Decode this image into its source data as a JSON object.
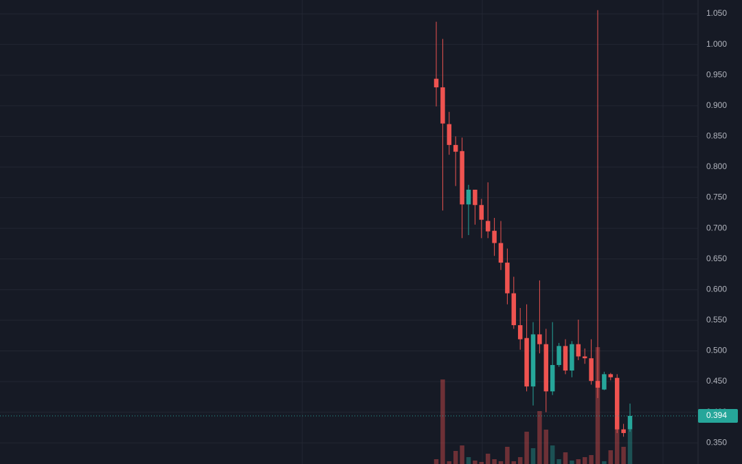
{
  "chart_data": {
    "type": "candlestick",
    "up_color": "#26a69a",
    "down_color": "#ef5350",
    "ylim": [
      0.3155,
      1.0725
    ],
    "yticks": [
      {
        "value": 0.35,
        "label": "0.350"
      },
      {
        "value": 0.4,
        "label": "0.400"
      },
      {
        "value": 0.45,
        "label": "0.450"
      },
      {
        "value": 0.5,
        "label": "0.500"
      },
      {
        "value": 0.55,
        "label": "0.550"
      },
      {
        "value": 0.6,
        "label": "0.600"
      },
      {
        "value": 0.65,
        "label": "0.650"
      },
      {
        "value": 0.7,
        "label": "0.700"
      },
      {
        "value": 0.75,
        "label": "0.750"
      },
      {
        "value": 0.8,
        "label": "0.800"
      },
      {
        "value": 0.85,
        "label": "0.850"
      },
      {
        "value": 0.9,
        "label": "0.900"
      },
      {
        "value": 0.95,
        "label": "0.950"
      },
      {
        "value": 1.0,
        "label": "1.000"
      },
      {
        "value": 1.05,
        "label": "1.050"
      }
    ],
    "grid": true,
    "last_price": {
      "value": 0.394,
      "label": "0.394"
    },
    "candles": [
      {
        "open": 0.944,
        "high": 1.037,
        "low": 0.899,
        "close": 0.93,
        "volume": 7
      },
      {
        "open": 0.93,
        "high": 1.009,
        "low": 0.729,
        "close": 0.871,
        "volume": 123
      },
      {
        "open": 0.87,
        "high": 0.89,
        "low": 0.82,
        "close": 0.836,
        "volume": 4
      },
      {
        "open": 0.836,
        "high": 0.85,
        "low": 0.769,
        "close": 0.825,
        "volume": 19
      },
      {
        "open": 0.826,
        "high": 0.848,
        "low": 0.684,
        "close": 0.739,
        "volume": 27
      },
      {
        "open": 0.739,
        "high": 0.771,
        "low": 0.689,
        "close": 0.763,
        "volume": 10
      },
      {
        "open": 0.763,
        "high": 0.763,
        "low": 0.706,
        "close": 0.738,
        "volume": 5
      },
      {
        "open": 0.738,
        "high": 0.748,
        "low": 0.684,
        "close": 0.714,
        "volume": 3
      },
      {
        "open": 0.712,
        "high": 0.775,
        "low": 0.684,
        "close": 0.695,
        "volume": 15
      },
      {
        "open": 0.696,
        "high": 0.717,
        "low": 0.655,
        "close": 0.676,
        "volume": 7
      },
      {
        "open": 0.676,
        "high": 0.712,
        "low": 0.632,
        "close": 0.644,
        "volume": 4
      },
      {
        "open": 0.644,
        "high": 0.667,
        "low": 0.576,
        "close": 0.594,
        "volume": 25
      },
      {
        "open": 0.594,
        "high": 0.621,
        "low": 0.536,
        "close": 0.542,
        "volume": 4
      },
      {
        "open": 0.542,
        "high": 0.57,
        "low": 0.502,
        "close": 0.519,
        "volume": 10
      },
      {
        "open": 0.521,
        "high": 0.576,
        "low": 0.434,
        "close": 0.442,
        "volume": 47
      },
      {
        "open": 0.442,
        "high": 0.547,
        "low": 0.411,
        "close": 0.527,
        "volume": 23
      },
      {
        "open": 0.527,
        "high": 0.615,
        "low": 0.496,
        "close": 0.511,
        "volume": 77
      },
      {
        "open": 0.511,
        "high": 0.536,
        "low": 0.4,
        "close": 0.434,
        "volume": 50
      },
      {
        "open": 0.434,
        "high": 0.547,
        "low": 0.428,
        "close": 0.477,
        "volume": 27
      },
      {
        "open": 0.477,
        "high": 0.513,
        "low": 0.474,
        "close": 0.508,
        "volume": 7
      },
      {
        "open": 0.508,
        "high": 0.519,
        "low": 0.462,
        "close": 0.468,
        "volume": 17
      },
      {
        "open": 0.468,
        "high": 0.516,
        "low": 0.457,
        "close": 0.511,
        "volume": 5
      },
      {
        "open": 0.511,
        "high": 0.551,
        "low": 0.485,
        "close": 0.491,
        "volume": 7
      },
      {
        "open": 0.491,
        "high": 0.504,
        "low": 0.479,
        "close": 0.488,
        "volume": 10
      },
      {
        "open": 0.488,
        "high": 0.519,
        "low": 0.445,
        "close": 0.451,
        "volume": 13
      },
      {
        "open": 0.451,
        "high": 1.056,
        "low": 0.423,
        "close": 0.44,
        "volume": 170
      },
      {
        "open": 0.437,
        "high": 0.466,
        "low": 0.436,
        "close": 0.462,
        "volume": 4
      },
      {
        "open": 0.462,
        "high": 0.464,
        "low": 0.452,
        "close": 0.457,
        "volume": 20
      },
      {
        "open": 0.456,
        "high": 0.462,
        "low": 0.366,
        "close": 0.372,
        "volume": 55
      },
      {
        "open": 0.372,
        "high": 0.381,
        "low": 0.36,
        "close": 0.366,
        "volume": 25
      },
      {
        "open": 0.372,
        "high": 0.414,
        "low": 0.368,
        "close": 0.394,
        "volume": 50
      }
    ]
  }
}
